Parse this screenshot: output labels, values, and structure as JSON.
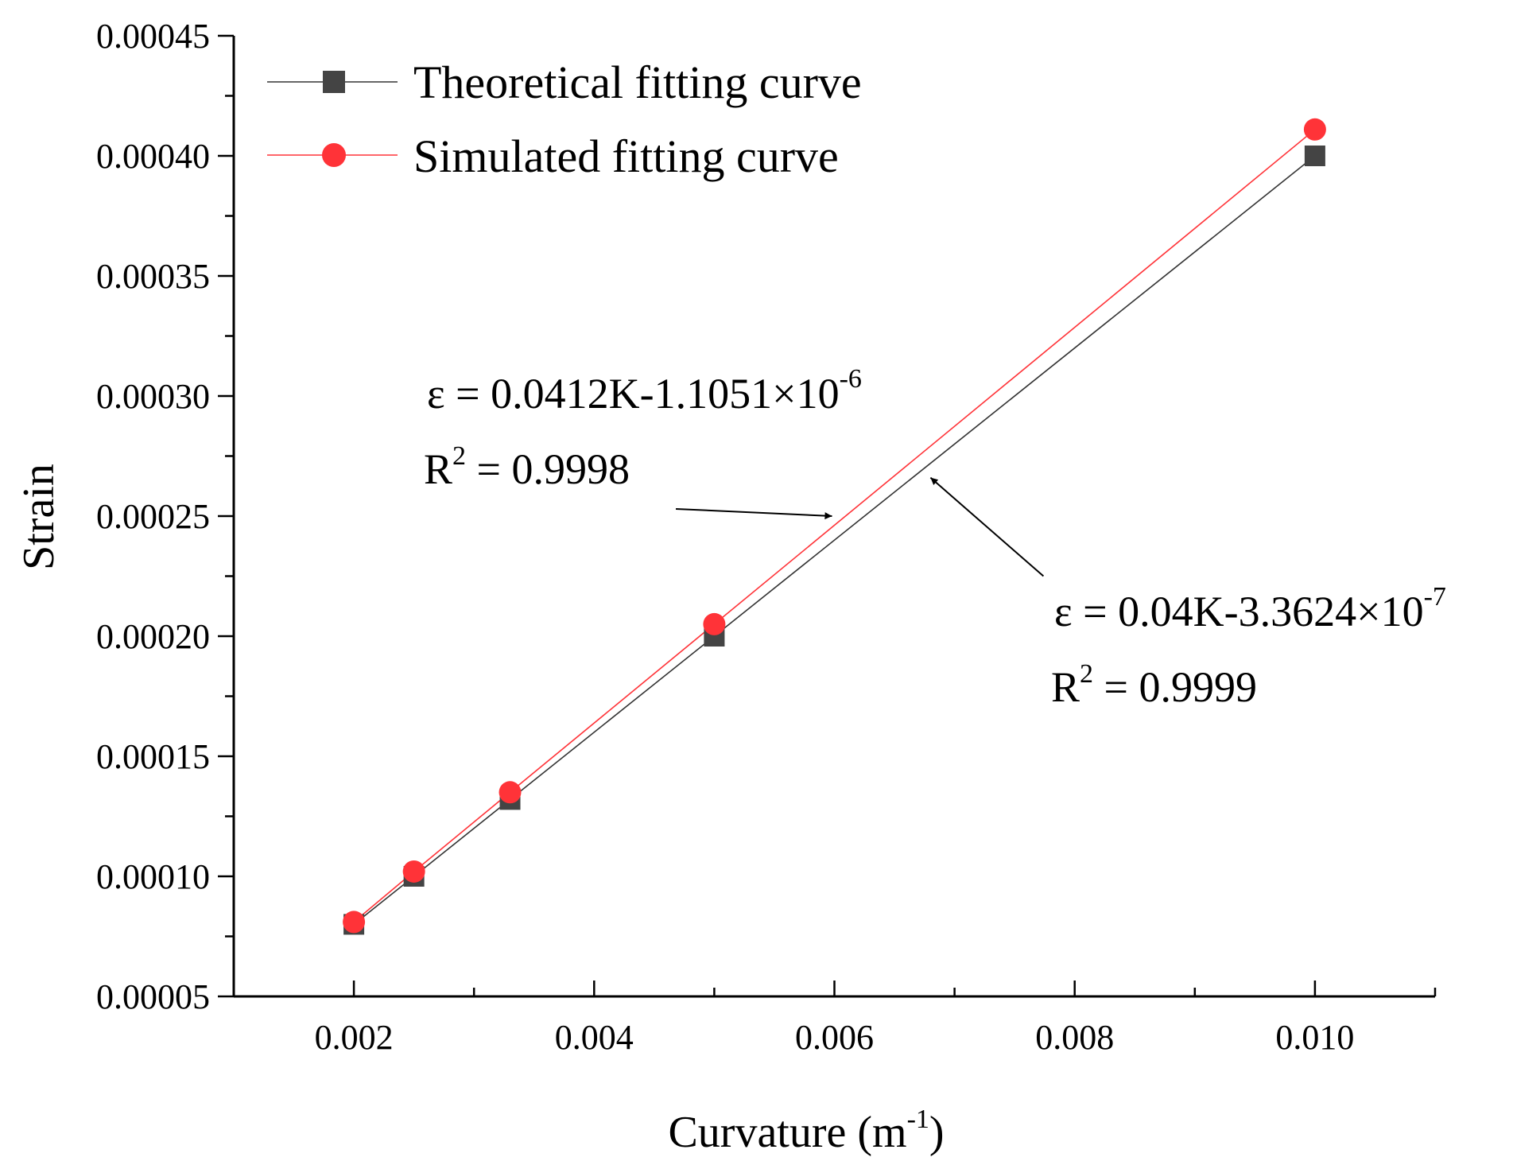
{
  "chart_data": {
    "type": "line",
    "xlabel": "Curvature (m",
    "xlabel_sup": "-1",
    "xlabel_close": ")",
    "ylabel": "Strain",
    "xlim": [
      0.001,
      0.011
    ],
    "ylim": [
      5e-05,
      0.00045
    ],
    "xticks": [
      "0.002",
      "0.004",
      "0.006",
      "0.008",
      "0.010"
    ],
    "xtick_values": [
      0.002,
      0.004,
      0.006,
      0.008,
      0.01
    ],
    "xminor_values": [
      0.001,
      0.003,
      0.005,
      0.007,
      0.009,
      0.011
    ],
    "yticks": [
      "0.00005",
      "0.00010",
      "0.00015",
      "0.00020",
      "0.00025",
      "0.00030",
      "0.00035",
      "0.00040",
      "0.00045"
    ],
    "ytick_values": [
      5e-05,
      0.0001,
      0.00015,
      0.0002,
      0.00025,
      0.0003,
      0.00035,
      0.0004,
      0.00045
    ],
    "legend_position": "top-left",
    "series": [
      {
        "name": "Theoretical fitting curve",
        "marker": "square",
        "color": "#444444",
        "line_color": "#333333",
        "x": [
          0.002,
          0.0025,
          0.0033,
          0.005,
          0.01
        ],
        "y": [
          8e-05,
          0.0001,
          0.000132,
          0.0002,
          0.0004
        ]
      },
      {
        "name": "Simulated fitting curve",
        "marker": "circle",
        "color": "#ff3338",
        "line_color": "#ff3338",
        "x": [
          0.002,
          0.0025,
          0.0033,
          0.005,
          0.01
        ],
        "y": [
          8.1e-05,
          0.000102,
          0.000135,
          0.000205,
          0.000411
        ]
      }
    ],
    "annotations": [
      {
        "name": "simulated",
        "equation": "ε = 0.0412K-1.1051×10",
        "exponent": "-6",
        "r2_label": "R",
        "r2_sup": "2",
        "r2_value": " = 0.9998",
        "arrow_target": {
          "x": 0.00598,
          "y": 0.00025
        },
        "arrow_tail": {
          "x": 0.00468,
          "y": 0.000253
        }
      },
      {
        "name": "theoretical",
        "equation": "ε = 0.04K-3.3624×10",
        "exponent": "-7",
        "r2_label": "R",
        "r2_sup": "2",
        "r2_value": " = 0.9999",
        "arrow_target": {
          "x": 0.0068,
          "y": 0.000266
        },
        "arrow_tail": {
          "x": 0.00774,
          "y": 0.000225
        }
      }
    ]
  }
}
